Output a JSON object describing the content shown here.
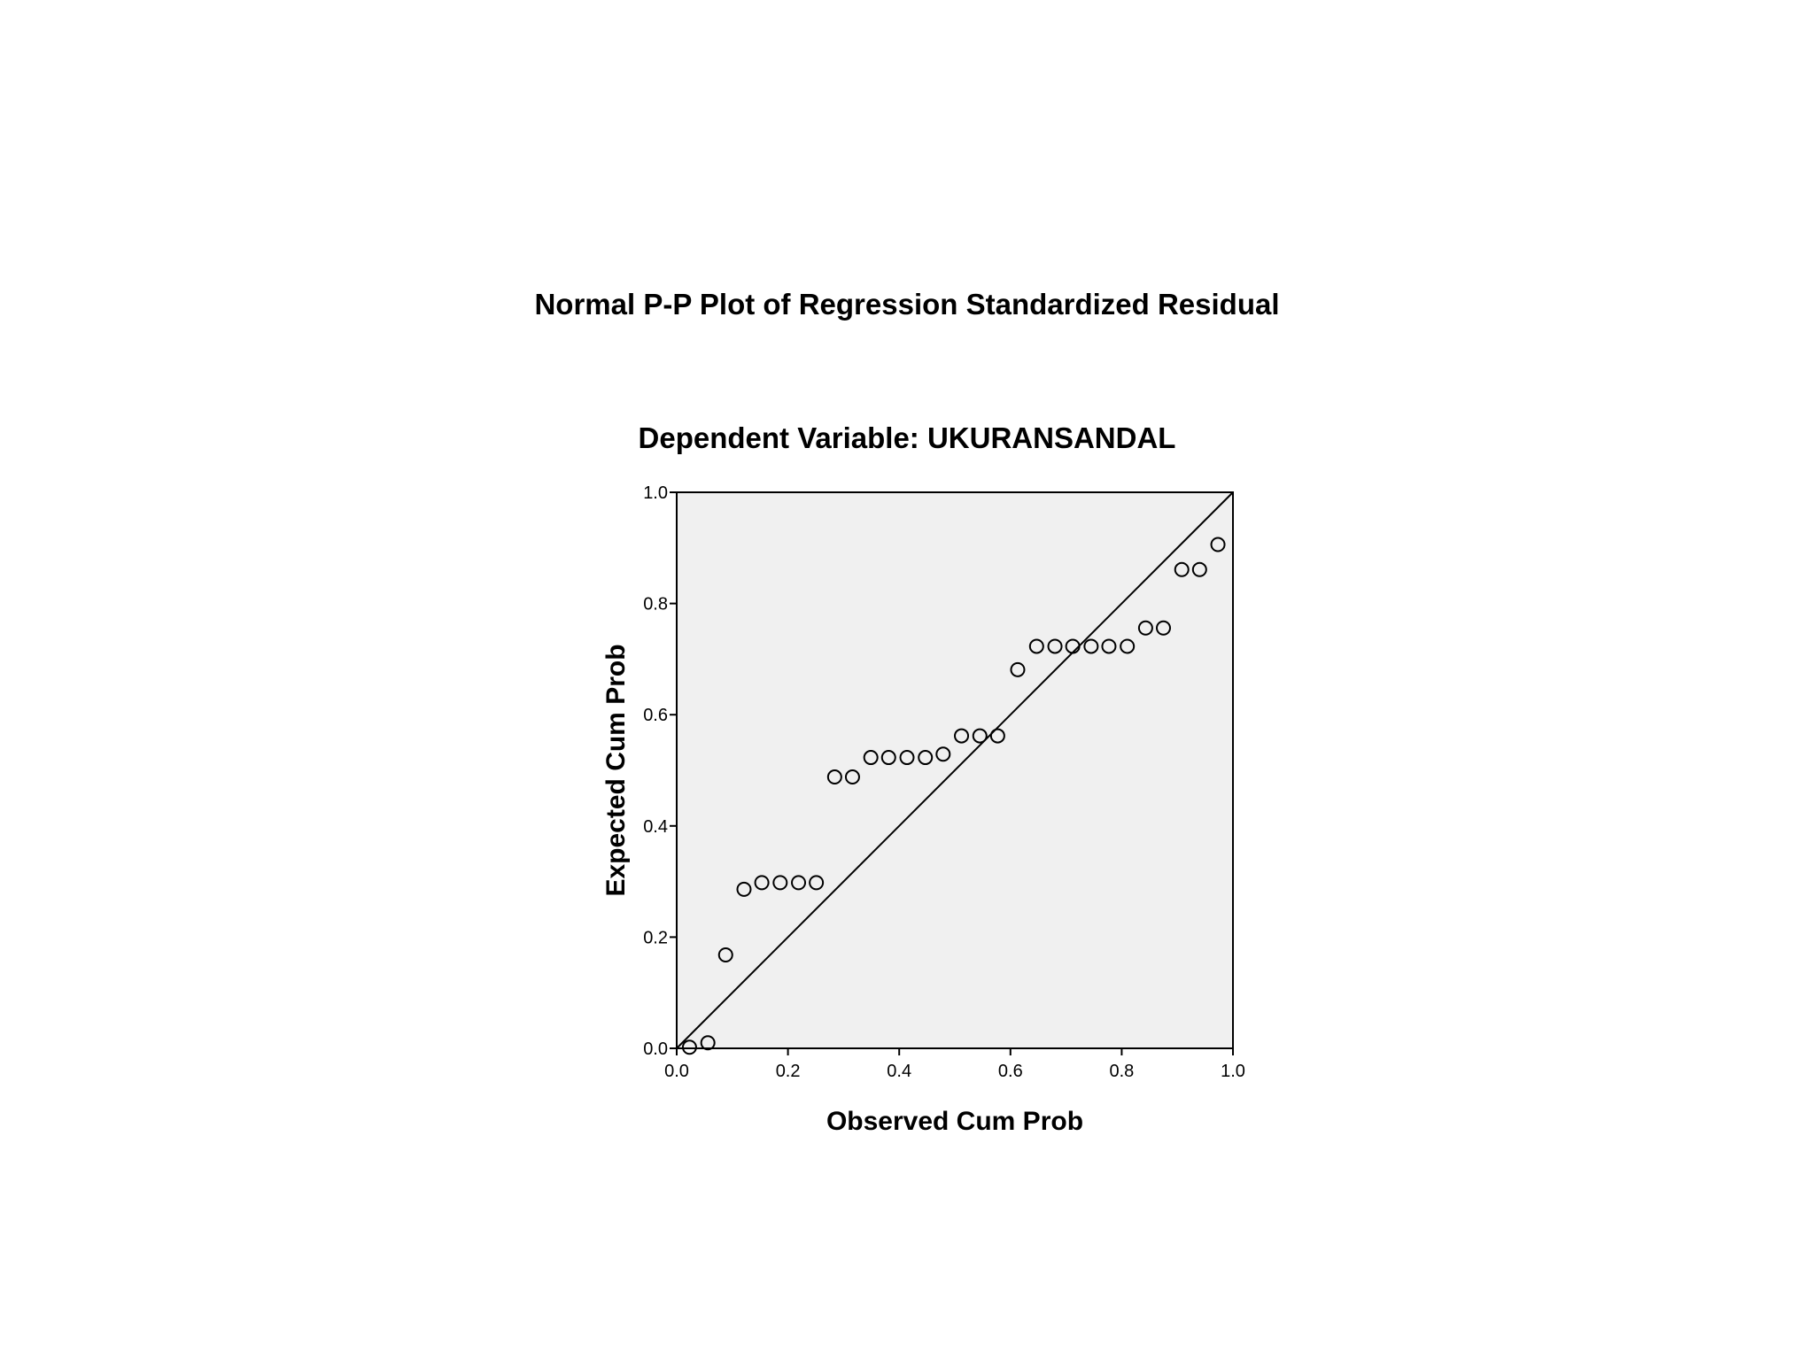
{
  "chart_data": {
    "type": "scatter",
    "title": "Normal P-P Plot of Regression Standardized Residual",
    "subtitle": "Dependent Variable: UKURANSANDAL",
    "xlabel": "Observed Cum Prob",
    "ylabel": "Expected Cum Prob",
    "xlim": [
      0.0,
      1.0
    ],
    "ylim": [
      0.0,
      1.0
    ],
    "xticks": [
      "0.0",
      "0.2",
      "0.4",
      "0.6",
      "0.8",
      "1.0"
    ],
    "yticks": [
      "0.0",
      "0.2",
      "0.4",
      "0.6",
      "0.8",
      "1.0"
    ],
    "reference_line": {
      "from": [
        0.0,
        0.0
      ],
      "to": [
        1.0,
        1.0
      ]
    },
    "grid": false,
    "plot_background": "#f0f0f0",
    "marker": "open-circle",
    "points": [
      {
        "x": 0.023,
        "y": 0.002
      },
      {
        "x": 0.056,
        "y": 0.01
      },
      {
        "x": 0.088,
        "y": 0.168
      },
      {
        "x": 0.121,
        "y": 0.286
      },
      {
        "x": 0.153,
        "y": 0.298
      },
      {
        "x": 0.186,
        "y": 0.298
      },
      {
        "x": 0.219,
        "y": 0.298
      },
      {
        "x": 0.251,
        "y": 0.298
      },
      {
        "x": 0.284,
        "y": 0.488
      },
      {
        "x": 0.316,
        "y": 0.488
      },
      {
        "x": 0.349,
        "y": 0.523
      },
      {
        "x": 0.381,
        "y": 0.523
      },
      {
        "x": 0.414,
        "y": 0.523
      },
      {
        "x": 0.447,
        "y": 0.523
      },
      {
        "x": 0.479,
        "y": 0.529
      },
      {
        "x": 0.512,
        "y": 0.562
      },
      {
        "x": 0.545,
        "y": 0.562
      },
      {
        "x": 0.577,
        "y": 0.562
      },
      {
        "x": 0.613,
        "y": 0.681
      },
      {
        "x": 0.647,
        "y": 0.723
      },
      {
        "x": 0.68,
        "y": 0.723
      },
      {
        "x": 0.712,
        "y": 0.723
      },
      {
        "x": 0.745,
        "y": 0.723
      },
      {
        "x": 0.777,
        "y": 0.723
      },
      {
        "x": 0.81,
        "y": 0.723
      },
      {
        "x": 0.843,
        "y": 0.756
      },
      {
        "x": 0.875,
        "y": 0.756
      },
      {
        "x": 0.908,
        "y": 0.861
      },
      {
        "x": 0.94,
        "y": 0.861
      },
      {
        "x": 0.973,
        "y": 0.906
      }
    ]
  }
}
